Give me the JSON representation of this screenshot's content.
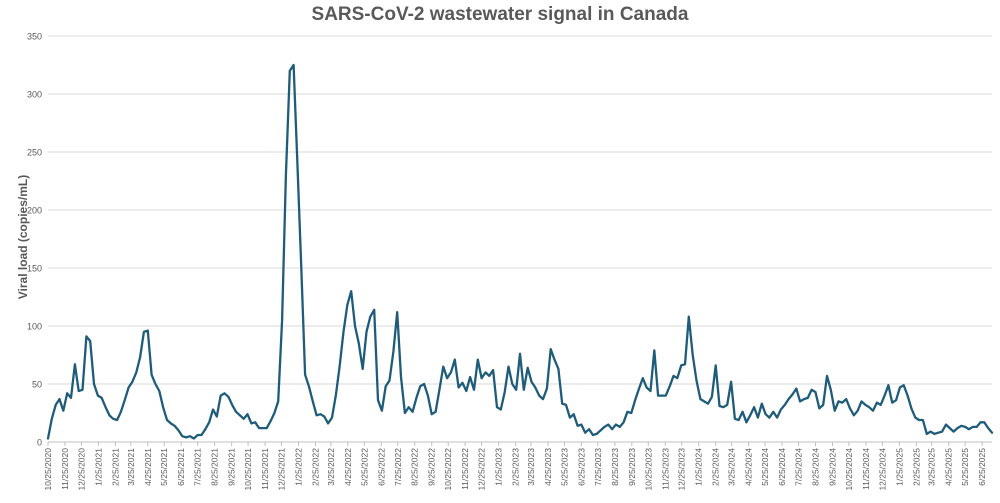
{
  "chart_data": {
    "type": "line",
    "title": "SARS-CoV-2 wastewater signal in Canada",
    "xlabel": "",
    "ylabel": "Viral load (copies/mL)",
    "ylim": [
      0,
      350
    ],
    "yticks": [
      0,
      50,
      100,
      150,
      200,
      250,
      300,
      350
    ],
    "grid": true,
    "line_color": "#1f5c7a",
    "x_tick_labels": [
      "10/25/2020",
      "11/25/2020",
      "12/25/2020",
      "1/25/2021",
      "2/25/2021",
      "3/25/2021",
      "4/25/2021",
      "5/25/2021",
      "6/25/2021",
      "7/25/2021",
      "8/25/2021",
      "9/25/2021",
      "10/25/2021",
      "11/25/2021",
      "12/25/2021",
      "1/25/2022",
      "2/25/2022",
      "3/25/2022",
      "4/25/2022",
      "5/25/2022",
      "6/25/2022",
      "7/25/2022",
      "8/25/2022",
      "9/25/2022",
      "10/25/2022",
      "11/25/2022",
      "12/25/2022",
      "1/25/2023",
      "2/25/2023",
      "3/25/2023",
      "4/25/2023",
      "5/25/2023",
      "6/25/2023",
      "7/25/2023",
      "8/25/2023",
      "9/25/2023",
      "10/25/2023",
      "11/25/2023",
      "12/25/2023",
      "1/25/2024",
      "2/25/2024",
      "3/25/2024",
      "4/25/2024",
      "5/25/2024",
      "6/25/2024",
      "7/25/2024",
      "8/25/2024",
      "9/25/2024",
      "10/25/2024",
      "11/25/2024",
      "12/25/2024",
      "1/25/2025",
      "2/25/2025",
      "3/25/2025",
      "4/25/2025",
      "5/25/2025",
      "6/25/2025"
    ],
    "series": [
      {
        "points": [
          [
            "10/25/2020",
            3
          ],
          [
            "11/1/2020",
            20
          ],
          [
            "11/8/2020",
            32
          ],
          [
            "11/15/2020",
            37
          ],
          [
            "11/22/2020",
            27
          ],
          [
            "11/29/2020",
            42
          ],
          [
            "12/6/2020",
            38
          ],
          [
            "12/13/2020",
            67
          ],
          [
            "12/20/2020",
            44
          ],
          [
            "12/27/2020",
            45
          ],
          [
            "1/3/2021",
            91
          ],
          [
            "1/10/2021",
            87
          ],
          [
            "1/17/2021",
            50
          ],
          [
            "1/24/2021",
            40
          ],
          [
            "1/31/2021",
            38
          ],
          [
            "2/7/2021",
            30
          ],
          [
            "2/14/2021",
            23
          ],
          [
            "2/21/2021",
            20
          ],
          [
            "2/28/2021",
            19
          ],
          [
            "3/7/2021",
            26
          ],
          [
            "3/14/2021",
            36
          ],
          [
            "3/21/2021",
            47
          ],
          [
            "3/28/2021",
            52
          ],
          [
            "4/4/2021",
            60
          ],
          [
            "4/11/2021",
            73
          ],
          [
            "4/18/2021",
            95
          ],
          [
            "4/25/2021",
            96
          ],
          [
            "5/2/2021",
            58
          ],
          [
            "5/9/2021",
            50
          ],
          [
            "5/16/2021",
            44
          ],
          [
            "5/23/2021",
            30
          ],
          [
            "5/30/2021",
            19
          ],
          [
            "6/6/2021",
            16
          ],
          [
            "6/13/2021",
            14
          ],
          [
            "6/20/2021",
            10
          ],
          [
            "6/27/2021",
            5
          ],
          [
            "7/4/2021",
            4
          ],
          [
            "7/11/2021",
            5
          ],
          [
            "7/18/2021",
            3
          ],
          [
            "7/25/2021",
            6
          ],
          [
            "8/1/2021",
            6
          ],
          [
            "8/8/2021",
            11
          ],
          [
            "8/15/2021",
            17
          ],
          [
            "8/22/2021",
            28
          ],
          [
            "8/29/2021",
            22
          ],
          [
            "9/5/2021",
            40
          ],
          [
            "9/12/2021",
            42
          ],
          [
            "9/19/2021",
            39
          ],
          [
            "9/26/2021",
            32
          ],
          [
            "10/3/2021",
            26
          ],
          [
            "10/10/2021",
            23
          ],
          [
            "10/17/2021",
            20
          ],
          [
            "10/24/2021",
            24
          ],
          [
            "10/31/2021",
            16
          ],
          [
            "11/7/2021",
            17
          ],
          [
            "11/14/2021",
            12
          ],
          [
            "11/21/2021",
            12
          ],
          [
            "11/28/2021",
            12
          ],
          [
            "12/5/2021",
            18
          ],
          [
            "12/12/2021",
            25
          ],
          [
            "12/19/2021",
            35
          ],
          [
            "12/26/2021",
            105
          ],
          [
            "1/2/2022",
            230
          ],
          [
            "1/9/2022",
            320
          ],
          [
            "1/16/2022",
            325
          ],
          [
            "1/23/2022",
            240
          ],
          [
            "1/30/2022",
            150
          ],
          [
            "2/6/2022",
            58
          ],
          [
            "2/13/2022",
            48
          ],
          [
            "2/20/2022",
            35
          ],
          [
            "2/27/2022",
            23
          ],
          [
            "3/6/2022",
            24
          ],
          [
            "3/13/2022",
            22
          ],
          [
            "3/20/2022",
            16
          ],
          [
            "3/27/2022",
            21
          ],
          [
            "4/3/2022",
            40
          ],
          [
            "4/10/2022",
            65
          ],
          [
            "4/17/2022",
            95
          ],
          [
            "4/24/2022",
            118
          ],
          [
            "5/1/2022",
            130
          ],
          [
            "5/8/2022",
            100
          ],
          [
            "5/15/2022",
            85
          ],
          [
            "5/22/2022",
            63
          ],
          [
            "5/29/2022",
            95
          ],
          [
            "6/5/2022",
            108
          ],
          [
            "6/12/2022",
            114
          ],
          [
            "6/19/2022",
            36
          ],
          [
            "6/26/2022",
            27
          ],
          [
            "7/3/2022",
            48
          ],
          [
            "7/10/2022",
            53
          ],
          [
            "7/17/2022",
            78
          ],
          [
            "7/24/2022",
            112
          ],
          [
            "7/31/2022",
            56
          ],
          [
            "8/7/2022",
            25
          ],
          [
            "8/14/2022",
            30
          ],
          [
            "8/21/2022",
            26
          ],
          [
            "8/28/2022",
            38
          ],
          [
            "9/4/2022",
            48
          ],
          [
            "9/11/2022",
            50
          ],
          [
            "9/18/2022",
            40
          ],
          [
            "9/25/2022",
            24
          ],
          [
            "10/2/2022",
            26
          ],
          [
            "10/9/2022",
            45
          ],
          [
            "10/16/2022",
            65
          ],
          [
            "10/23/2022",
            55
          ],
          [
            "10/30/2022",
            60
          ],
          [
            "11/6/2022",
            71
          ],
          [
            "11/13/2022",
            47
          ],
          [
            "11/20/2022",
            51
          ],
          [
            "11/27/2022",
            44
          ],
          [
            "12/4/2022",
            56
          ],
          [
            "12/11/2022",
            45
          ],
          [
            "12/18/2022",
            71
          ],
          [
            "12/25/2022",
            55
          ],
          [
            "1/1/2023",
            60
          ],
          [
            "1/8/2023",
            57
          ],
          [
            "1/15/2023",
            62
          ],
          [
            "1/22/2023",
            30
          ],
          [
            "1/29/2023",
            28
          ],
          [
            "2/5/2023",
            43
          ],
          [
            "2/12/2023",
            65
          ],
          [
            "2/19/2023",
            50
          ],
          [
            "2/26/2023",
            45
          ],
          [
            "3/5/2023",
            76
          ],
          [
            "3/12/2023",
            45
          ],
          [
            "3/19/2023",
            64
          ],
          [
            "3/26/2023",
            52
          ],
          [
            "4/2/2023",
            47
          ],
          [
            "4/9/2023",
            40
          ],
          [
            "4/16/2023",
            37
          ],
          [
            "4/23/2023",
            46
          ],
          [
            "4/30/2023",
            80
          ],
          [
            "5/7/2023",
            71
          ],
          [
            "5/14/2023",
            63
          ],
          [
            "5/21/2023",
            33
          ],
          [
            "5/28/2023",
            32
          ],
          [
            "6/4/2023",
            21
          ],
          [
            "6/11/2023",
            24
          ],
          [
            "6/18/2023",
            14
          ],
          [
            "6/25/2023",
            15
          ],
          [
            "7/2/2023",
            8
          ],
          [
            "7/9/2023",
            11
          ],
          [
            "7/16/2023",
            6
          ],
          [
            "7/23/2023",
            7
          ],
          [
            "7/30/2023",
            10
          ],
          [
            "8/6/2023",
            13
          ],
          [
            "8/13/2023",
            15
          ],
          [
            "8/20/2023",
            11
          ],
          [
            "8/27/2023",
            15
          ],
          [
            "9/3/2023",
            13
          ],
          [
            "9/10/2023",
            17
          ],
          [
            "9/17/2023",
            26
          ],
          [
            "9/24/2023",
            25
          ],
          [
            "10/1/2023",
            36
          ],
          [
            "10/8/2023",
            46
          ],
          [
            "10/15/2023",
            55
          ],
          [
            "10/22/2023",
            47
          ],
          [
            "10/29/2023",
            44
          ],
          [
            "11/5/2023",
            79
          ],
          [
            "11/12/2023",
            40
          ],
          [
            "11/19/2023",
            40
          ],
          [
            "11/26/2023",
            40
          ],
          [
            "12/3/2023",
            48
          ],
          [
            "12/10/2023",
            57
          ],
          [
            "12/17/2023",
            55
          ],
          [
            "12/24/2023",
            66
          ],
          [
            "12/31/2023",
            67
          ],
          [
            "1/7/2024",
            108
          ],
          [
            "1/14/2024",
            75
          ],
          [
            "1/21/2024",
            53
          ],
          [
            "1/28/2024",
            37
          ],
          [
            "2/4/2024",
            35
          ],
          [
            "2/11/2024",
            33
          ],
          [
            "2/18/2024",
            39
          ],
          [
            "2/25/2024",
            66
          ],
          [
            "3/3/2024",
            31
          ],
          [
            "3/10/2024",
            30
          ],
          [
            "3/17/2024",
            32
          ],
          [
            "3/24/2024",
            52
          ],
          [
            "3/31/2024",
            20
          ],
          [
            "4/7/2024",
            19
          ],
          [
            "4/14/2024",
            26
          ],
          [
            "4/21/2024",
            17
          ],
          [
            "4/28/2024",
            23
          ],
          [
            "5/5/2024",
            30
          ],
          [
            "5/12/2024",
            21
          ],
          [
            "5/19/2024",
            33
          ],
          [
            "5/26/2024",
            24
          ],
          [
            "6/2/2024",
            21
          ],
          [
            "6/9/2024",
            26
          ],
          [
            "6/16/2024",
            21
          ],
          [
            "6/23/2024",
            28
          ],
          [
            "6/30/2024",
            32
          ],
          [
            "7/7/2024",
            37
          ],
          [
            "7/14/2024",
            41
          ],
          [
            "7/21/2024",
            46
          ],
          [
            "7/28/2024",
            35
          ],
          [
            "8/4/2024",
            37
          ],
          [
            "8/11/2024",
            38
          ],
          [
            "8/18/2024",
            45
          ],
          [
            "8/25/2024",
            43
          ],
          [
            "9/1/2024",
            29
          ],
          [
            "9/8/2024",
            32
          ],
          [
            "9/15/2024",
            57
          ],
          [
            "9/22/2024",
            45
          ],
          [
            "9/29/2024",
            27
          ],
          [
            "10/6/2024",
            35
          ],
          [
            "10/13/2024",
            34
          ],
          [
            "10/20/2024",
            37
          ],
          [
            "10/27/2024",
            29
          ],
          [
            "11/3/2024",
            23
          ],
          [
            "11/10/2024",
            27
          ],
          [
            "11/17/2024",
            35
          ],
          [
            "11/24/2024",
            32
          ],
          [
            "12/1/2024",
            30
          ],
          [
            "12/8/2024",
            27
          ],
          [
            "12/15/2024",
            34
          ],
          [
            "12/22/2024",
            32
          ],
          [
            "12/29/2024",
            40
          ],
          [
            "1/5/2025",
            49
          ],
          [
            "1/12/2025",
            34
          ],
          [
            "1/19/2025",
            36
          ],
          [
            "1/26/2025",
            47
          ],
          [
            "2/2/2025",
            49
          ],
          [
            "2/9/2025",
            40
          ],
          [
            "2/16/2025",
            29
          ],
          [
            "2/23/2025",
            21
          ],
          [
            "3/2/2025",
            19
          ],
          [
            "3/9/2025",
            19
          ],
          [
            "3/16/2025",
            7
          ],
          [
            "3/23/2025",
            9
          ],
          [
            "3/30/2025",
            7
          ],
          [
            "4/6/2025",
            8
          ],
          [
            "4/13/2025",
            9
          ],
          [
            "4/20/2025",
            15
          ],
          [
            "4/27/2025",
            12
          ],
          [
            "5/4/2025",
            9
          ],
          [
            "5/11/2025",
            12
          ],
          [
            "5/18/2025",
            14
          ],
          [
            "5/25/2025",
            13
          ],
          [
            "6/1/2025",
            11
          ],
          [
            "6/8/2025",
            13
          ],
          [
            "6/15/2025",
            13
          ],
          [
            "6/22/2025",
            17
          ],
          [
            "6/29/2025",
            17
          ],
          [
            "7/6/2025",
            12
          ],
          [
            "7/13/2025",
            8
          ]
        ]
      }
    ]
  }
}
